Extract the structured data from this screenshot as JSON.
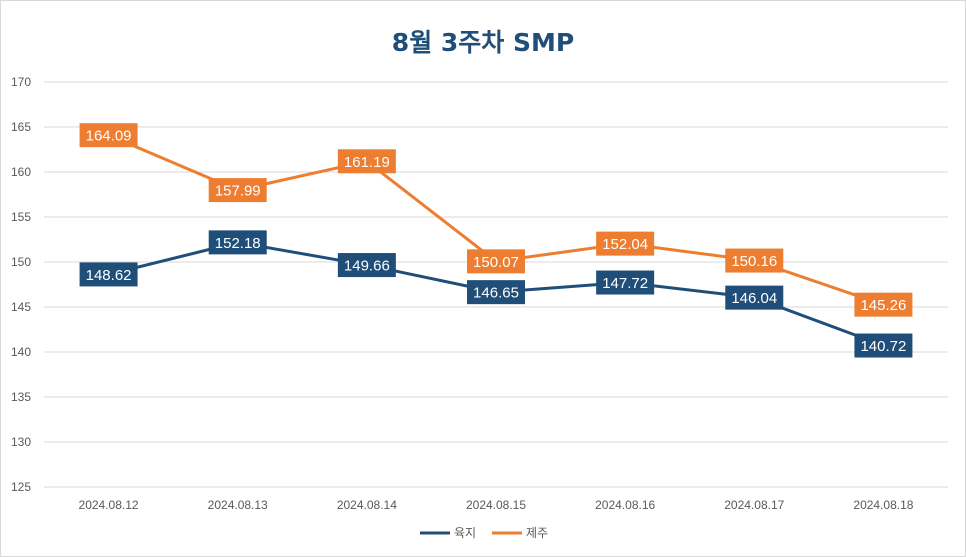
{
  "chart_data": {
    "type": "line",
    "title": "8월 3주차 SMP",
    "categories": [
      "2024.08.12",
      "2024.08.13",
      "2024.08.14",
      "2024.08.15",
      "2024.08.16",
      "2024.08.17",
      "2024.08.18"
    ],
    "ylim": [
      125,
      170
    ],
    "yticks": [
      "125",
      "130",
      "135",
      "140",
      "145",
      "150",
      "155",
      "160",
      "165",
      "170"
    ],
    "grid": true,
    "legend_position": "bottom",
    "xlabel": "",
    "ylabel": "",
    "series": [
      {
        "name": "육지",
        "color": "#1f4e79",
        "values": [
          148.62,
          152.18,
          149.66,
          146.65,
          147.72,
          146.04,
          140.72
        ],
        "labels": [
          "148.62",
          "152.18",
          "149.66",
          "146.65",
          "147.72",
          "146.04",
          "140.72"
        ]
      },
      {
        "name": "제주",
        "color": "#ed7d31",
        "values": [
          164.09,
          157.99,
          161.19,
          150.07,
          152.04,
          150.16,
          145.26
        ],
        "labels": [
          "164.09",
          "157.99",
          "161.19",
          "150.07",
          "152.04",
          "150.16",
          "145.26"
        ]
      }
    ]
  }
}
